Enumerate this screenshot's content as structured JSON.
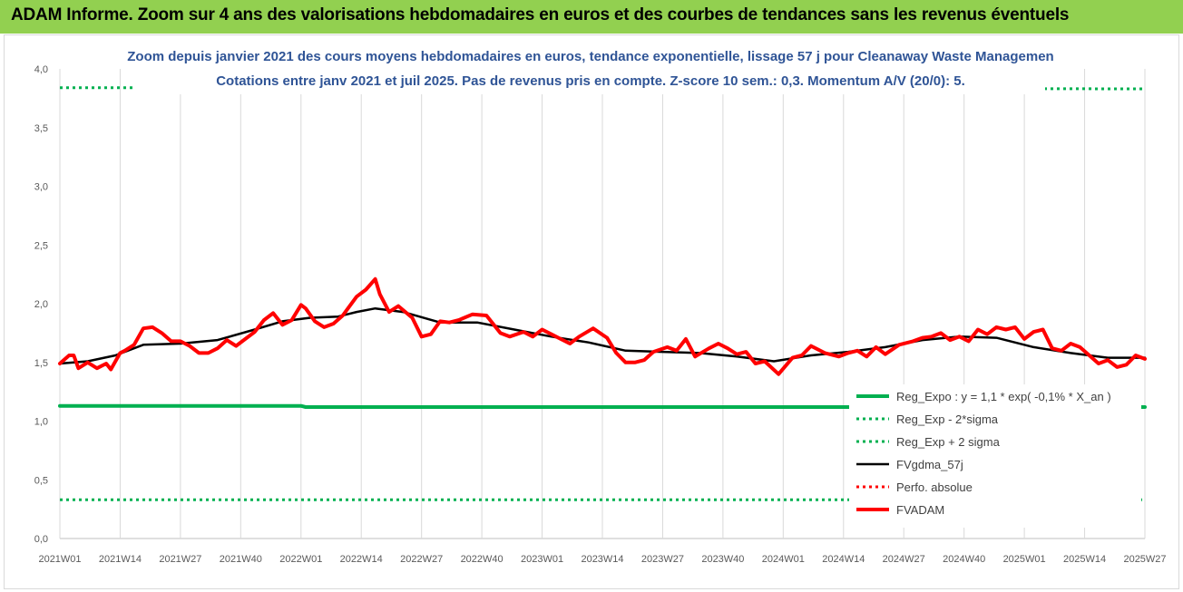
{
  "header": {
    "title": "ADAM Informe. Zoom sur 4 ans des valorisations hebdomadaires en euros et des courbes de tendances sans les revenus éventuels"
  },
  "colors": {
    "banner": "#92d050",
    "title_text": "#2f5496",
    "reg_expo": "#00b050",
    "fvgdma": "#000000",
    "fvadam": "#ff0000",
    "perfo": "#ff0000"
  },
  "chart_data": {
    "type": "line",
    "title": "Zoom depuis janvier 2021 des cours moyens hebdomadaires en euros, tendance exponentielle, lissage 57 j pour Cleanaway Waste Managemen",
    "subtitle": "Cotations entre janv 2021 et juil 2025. Pas de revenus pris en compte. Z-score 10 sem.: 0,3. Momentum A/V (20/0): 5.",
    "xlabel": "",
    "ylabel": "",
    "ylim": [
      0,
      4
    ],
    "y_ticks": [
      "0,0",
      "0,5",
      "1,0",
      "1,5",
      "2,0",
      "2,5",
      "3,0",
      "3,5",
      "4,0"
    ],
    "x_ticks": [
      "2021W01",
      "2021W14",
      "2021W27",
      "2021W40",
      "2022W01",
      "2022W14",
      "2022W27",
      "2022W40",
      "2023W01",
      "2023W14",
      "2023W27",
      "2023W40",
      "2024W01",
      "2024W14",
      "2024W27",
      "2024W40",
      "2025W01",
      "2025W14",
      "2025W27"
    ],
    "grid": "vertical",
    "legend_position": "bottom-right",
    "series": [
      {
        "name": "Reg_Expo : y = 1,1 * exp( -0,1% * X_an )",
        "style": "solid-thick",
        "color": "#00b050",
        "x": [
          0,
          52,
          53,
          234
        ],
        "values": [
          1.13,
          1.13,
          1.12,
          1.12
        ]
      },
      {
        "name": "Reg_Exp - 2*sigma",
        "style": "dotted",
        "color": "#00b050",
        "x": [
          0,
          234
        ],
        "values": [
          0.33,
          0.33
        ]
      },
      {
        "name": "Reg_Exp + 2 sigma",
        "style": "dotted",
        "color": "#00b050",
        "x": [
          0,
          234
        ],
        "values": [
          3.84,
          3.83
        ]
      },
      {
        "name": "FVgdma_57j",
        "style": "solid",
        "color": "#000000",
        "x": [
          0,
          6,
          12,
          18,
          26,
          34,
          42,
          48,
          54,
          60,
          64,
          68,
          74,
          82,
          90,
          98,
          106,
          114,
          122,
          130,
          138,
          146,
          154,
          162,
          170,
          178,
          186,
          194,
          202,
          210,
          218,
          226,
          234
        ],
        "values": [
          1.49,
          1.51,
          1.56,
          1.65,
          1.66,
          1.69,
          1.78,
          1.85,
          1.88,
          1.89,
          1.93,
          1.96,
          1.93,
          1.84,
          1.84,
          1.78,
          1.72,
          1.67,
          1.6,
          1.59,
          1.58,
          1.55,
          1.51,
          1.56,
          1.59,
          1.63,
          1.69,
          1.72,
          1.71,
          1.63,
          1.58,
          1.54,
          1.54
        ]
      },
      {
        "name": "Perfo. absolue",
        "style": "dotted",
        "color": "#ff0000",
        "x": [],
        "values": []
      },
      {
        "name": "FVADAM",
        "style": "solid-thick",
        "color": "#ff0000",
        "x": [
          0,
          2,
          3,
          4,
          6,
          8,
          10,
          11,
          13,
          14,
          16,
          18,
          20,
          22,
          24,
          26,
          28,
          30,
          32,
          34,
          36,
          38,
          40,
          42,
          44,
          46,
          48,
          50,
          52,
          53,
          55,
          57,
          59,
          61,
          64,
          66,
          68,
          69,
          71,
          73,
          76,
          78,
          80,
          82,
          84,
          86,
          89,
          92,
          95,
          97,
          100,
          102,
          104,
          106,
          108,
          110,
          112,
          115,
          118,
          120,
          122,
          124,
          126,
          128,
          131,
          133,
          135,
          137,
          140,
          142,
          144,
          146,
          148,
          150,
          152,
          155,
          158,
          160,
          162,
          165,
          168,
          170,
          172,
          174,
          176,
          178,
          181,
          184,
          186,
          188,
          190,
          192,
          194,
          196,
          198,
          200,
          202,
          204,
          206,
          208,
          210,
          212,
          214,
          216,
          218,
          220,
          222,
          224,
          226,
          228,
          230,
          232,
          234
        ],
        "values": [
          1.49,
          1.56,
          1.56,
          1.45,
          1.5,
          1.45,
          1.49,
          1.44,
          1.58,
          1.6,
          1.65,
          1.79,
          1.8,
          1.75,
          1.68,
          1.68,
          1.64,
          1.58,
          1.58,
          1.62,
          1.69,
          1.64,
          1.7,
          1.76,
          1.86,
          1.92,
          1.82,
          1.86,
          1.99,
          1.96,
          1.85,
          1.8,
          1.83,
          1.9,
          2.06,
          2.12,
          2.21,
          2.08,
          1.93,
          1.98,
          1.88,
          1.72,
          1.74,
          1.85,
          1.84,
          1.86,
          1.91,
          1.9,
          1.75,
          1.72,
          1.76,
          1.72,
          1.78,
          1.74,
          1.7,
          1.66,
          1.72,
          1.79,
          1.71,
          1.58,
          1.5,
          1.5,
          1.52,
          1.59,
          1.63,
          1.6,
          1.7,
          1.55,
          1.62,
          1.66,
          1.62,
          1.57,
          1.59,
          1.49,
          1.51,
          1.4,
          1.54,
          1.56,
          1.64,
          1.58,
          1.55,
          1.58,
          1.6,
          1.55,
          1.63,
          1.57,
          1.65,
          1.68,
          1.71,
          1.72,
          1.75,
          1.69,
          1.72,
          1.68,
          1.78,
          1.74,
          1.8,
          1.78,
          1.8,
          1.7,
          1.76,
          1.78,
          1.62,
          1.6,
          1.66,
          1.63,
          1.56,
          1.49,
          1.52,
          1.46,
          1.48,
          1.56,
          1.53
        ]
      }
    ]
  }
}
